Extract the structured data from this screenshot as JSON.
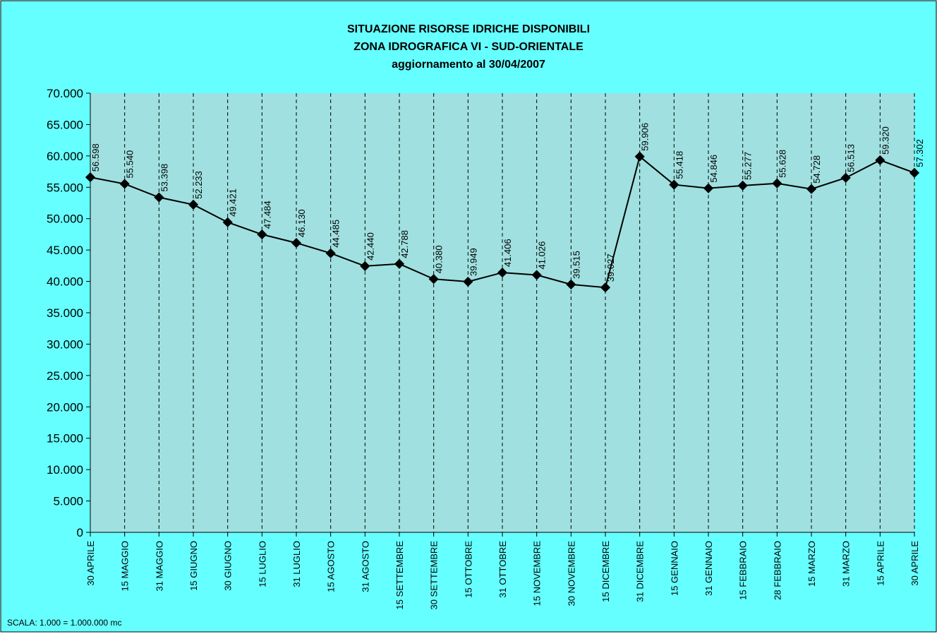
{
  "chart_data": {
    "type": "line",
    "title": [
      "SITUAZIONE RISORSE IDRICHE DISPONIBILI",
      "ZONA IDROGRAFICA  VI - SUD-ORIENTALE",
      "aggiornamento al 30/04/2007"
    ],
    "footnote": "SCALA: 1.000 = 1.000.000 mc",
    "categories": [
      "30 APRILE",
      "15  MAGGIO",
      "31 MAGGIO",
      "15 GIUGNO",
      "30 GIUGNO",
      "15 LUGLIO",
      "31 LUGLIO",
      "15 AGOSTO",
      "31 AGOSTO",
      "15 SETTEMBRE",
      "30 SETTEMBRE",
      "15 OTTOBRE",
      "31 OTTOBRE",
      "15 NOVEMBRE",
      "30 NOVEMBRE",
      "15 DICEMBRE",
      "31  DICEMBRE",
      "15 GENNAIO",
      "31 GENNAIO",
      "15 FEBBRAIO",
      "28 FEBBRAIO",
      "15 MARZO",
      "31 MARZO",
      "15 APRILE",
      "30 APRILE"
    ],
    "series": [
      {
        "color": "#000000",
        "values": [
          56598,
          55540,
          53398,
          52233,
          49421,
          47484,
          46130,
          44485,
          42440,
          42788,
          40380,
          39949,
          41406,
          41026,
          39515,
          39027,
          59906,
          55418,
          54846,
          55277,
          55628,
          54728,
          56513,
          59320,
          57302
        ],
        "value_labels": [
          "56.598",
          "55.540",
          "53.398",
          "52.233",
          "49.421",
          "47.484",
          "46.130",
          "44.485",
          "42.440",
          "42.788",
          "40.380",
          "39.949",
          "41.406",
          "41.026",
          "39.515",
          "39.027",
          "59.906",
          "55.418",
          "54.846",
          "55.277",
          "55.628",
          "54.728",
          "56.513",
          "59.320",
          "57.302"
        ]
      }
    ],
    "ylim": [
      0,
      70000
    ],
    "yticks": [
      0,
      {
        "value": 5000,
        "label": "5.000"
      },
      {
        "value": 10000,
        "label": "10.000"
      },
      {
        "value": 15000,
        "label": "15.000"
      },
      {
        "value": 20000,
        "label": "20.000"
      },
      {
        "value": 25000,
        "label": "25.000"
      },
      {
        "value": 30000,
        "label": "30.000"
      },
      {
        "value": 35000,
        "label": "35.000"
      },
      {
        "value": 40000,
        "label": "40.000"
      },
      {
        "value": 45000,
        "label": "45.000"
      },
      {
        "value": 50000,
        "label": "50.000"
      },
      {
        "value": 55000,
        "label": "55.000"
      },
      {
        "value": 60000,
        "label": "60.000"
      },
      {
        "value": 65000,
        "label": "65.000"
      },
      {
        "value": 70000,
        "label": "70.000"
      }
    ],
    "plot_background": "#a0e0e0",
    "background": "#66ffff"
  }
}
